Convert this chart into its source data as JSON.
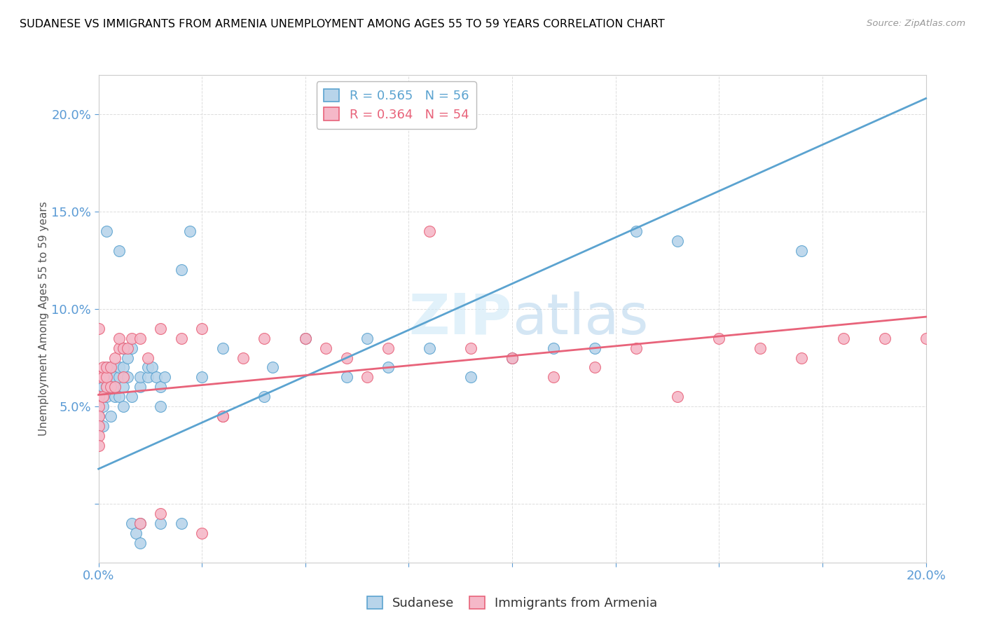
{
  "title": "SUDANESE VS IMMIGRANTS FROM ARMENIA UNEMPLOYMENT AMONG AGES 55 TO 59 YEARS CORRELATION CHART",
  "source": "Source: ZipAtlas.com",
  "ylabel": "Unemployment Among Ages 55 to 59 years",
  "xlim": [
    0.0,
    0.2
  ],
  "ylim": [
    -0.03,
    0.22
  ],
  "xticks": [
    0.0,
    0.025,
    0.05,
    0.075,
    0.1,
    0.125,
    0.15,
    0.175,
    0.2
  ],
  "yticks": [
    0.0,
    0.05,
    0.1,
    0.15,
    0.2
  ],
  "color_blue": "#b8d4ea",
  "color_pink": "#f5b8c8",
  "line_blue": "#5ba3d0",
  "line_pink": "#e8637a",
  "watermark_color": "#cce4f5",
  "sudanese_points": [
    [
      0.0,
      0.045
    ],
    [
      0.0,
      0.04
    ],
    [
      0.0,
      0.05
    ],
    [
      0.0,
      0.055
    ],
    [
      0.0,
      0.06
    ],
    [
      0.001,
      0.05
    ],
    [
      0.001,
      0.04
    ],
    [
      0.001,
      0.06
    ],
    [
      0.002,
      0.055
    ],
    [
      0.002,
      0.06
    ],
    [
      0.002,
      0.065
    ],
    [
      0.002,
      0.07
    ],
    [
      0.003,
      0.065
    ],
    [
      0.003,
      0.07
    ],
    [
      0.003,
      0.045
    ],
    [
      0.004,
      0.055
    ],
    [
      0.004,
      0.06
    ],
    [
      0.004,
      0.065
    ],
    [
      0.005,
      0.055
    ],
    [
      0.005,
      0.065
    ],
    [
      0.005,
      0.07
    ],
    [
      0.006,
      0.05
    ],
    [
      0.006,
      0.06
    ],
    [
      0.006,
      0.07
    ],
    [
      0.007,
      0.065
    ],
    [
      0.007,
      0.075
    ],
    [
      0.008,
      0.055
    ],
    [
      0.008,
      0.08
    ],
    [
      0.01,
      0.06
    ],
    [
      0.01,
      0.065
    ],
    [
      0.012,
      0.065
    ],
    [
      0.012,
      0.07
    ],
    [
      0.013,
      0.07
    ],
    [
      0.014,
      0.065
    ],
    [
      0.015,
      0.05
    ],
    [
      0.015,
      0.06
    ],
    [
      0.016,
      0.065
    ],
    [
      0.02,
      0.12
    ],
    [
      0.022,
      0.14
    ],
    [
      0.025,
      0.065
    ],
    [
      0.03,
      0.08
    ],
    [
      0.04,
      0.055
    ],
    [
      0.042,
      0.07
    ],
    [
      0.05,
      0.085
    ],
    [
      0.06,
      0.065
    ],
    [
      0.065,
      0.085
    ],
    [
      0.07,
      0.07
    ],
    [
      0.08,
      0.08
    ],
    [
      0.09,
      0.065
    ],
    [
      0.1,
      0.075
    ],
    [
      0.11,
      0.08
    ],
    [
      0.12,
      0.08
    ],
    [
      0.13,
      0.14
    ],
    [
      0.14,
      0.135
    ],
    [
      0.002,
      0.14
    ],
    [
      0.005,
      0.13
    ],
    [
      0.008,
      -0.01
    ],
    [
      0.009,
      -0.015
    ],
    [
      0.01,
      -0.01
    ],
    [
      0.015,
      -0.01
    ],
    [
      0.17,
      0.13
    ],
    [
      0.006,
      0.08
    ],
    [
      0.02,
      -0.01
    ],
    [
      0.01,
      -0.02
    ]
  ],
  "armenia_points": [
    [
      0.0,
      0.09
    ],
    [
      0.0,
      0.065
    ],
    [
      0.0,
      0.055
    ],
    [
      0.0,
      0.05
    ],
    [
      0.0,
      0.045
    ],
    [
      0.0,
      0.04
    ],
    [
      0.0,
      0.035
    ],
    [
      0.0,
      0.03
    ],
    [
      0.001,
      0.055
    ],
    [
      0.001,
      0.065
    ],
    [
      0.001,
      0.07
    ],
    [
      0.002,
      0.06
    ],
    [
      0.002,
      0.065
    ],
    [
      0.002,
      0.07
    ],
    [
      0.003,
      0.06
    ],
    [
      0.003,
      0.07
    ],
    [
      0.004,
      0.06
    ],
    [
      0.004,
      0.075
    ],
    [
      0.005,
      0.08
    ],
    [
      0.005,
      0.085
    ],
    [
      0.006,
      0.065
    ],
    [
      0.006,
      0.08
    ],
    [
      0.007,
      0.08
    ],
    [
      0.008,
      0.085
    ],
    [
      0.01,
      0.085
    ],
    [
      0.012,
      0.075
    ],
    [
      0.015,
      0.09
    ],
    [
      0.02,
      0.085
    ],
    [
      0.025,
      0.09
    ],
    [
      0.03,
      0.045
    ],
    [
      0.035,
      0.075
    ],
    [
      0.04,
      0.085
    ],
    [
      0.05,
      0.085
    ],
    [
      0.055,
      0.08
    ],
    [
      0.06,
      0.075
    ],
    [
      0.065,
      0.065
    ],
    [
      0.07,
      0.08
    ],
    [
      0.08,
      0.14
    ],
    [
      0.09,
      0.08
    ],
    [
      0.1,
      0.075
    ],
    [
      0.11,
      0.065
    ],
    [
      0.12,
      0.07
    ],
    [
      0.13,
      0.08
    ],
    [
      0.14,
      0.055
    ],
    [
      0.15,
      0.085
    ],
    [
      0.16,
      0.08
    ],
    [
      0.17,
      0.075
    ],
    [
      0.18,
      0.085
    ],
    [
      0.19,
      0.085
    ],
    [
      0.2,
      0.085
    ],
    [
      0.01,
      -0.01
    ],
    [
      0.015,
      -0.005
    ],
    [
      0.025,
      -0.015
    ],
    [
      0.03,
      0.045
    ]
  ],
  "blue_line_x": [
    0.0,
    0.2
  ],
  "blue_line_y": [
    0.018,
    0.208
  ],
  "pink_line_x": [
    0.0,
    0.2
  ],
  "pink_line_y": [
    0.056,
    0.096
  ]
}
